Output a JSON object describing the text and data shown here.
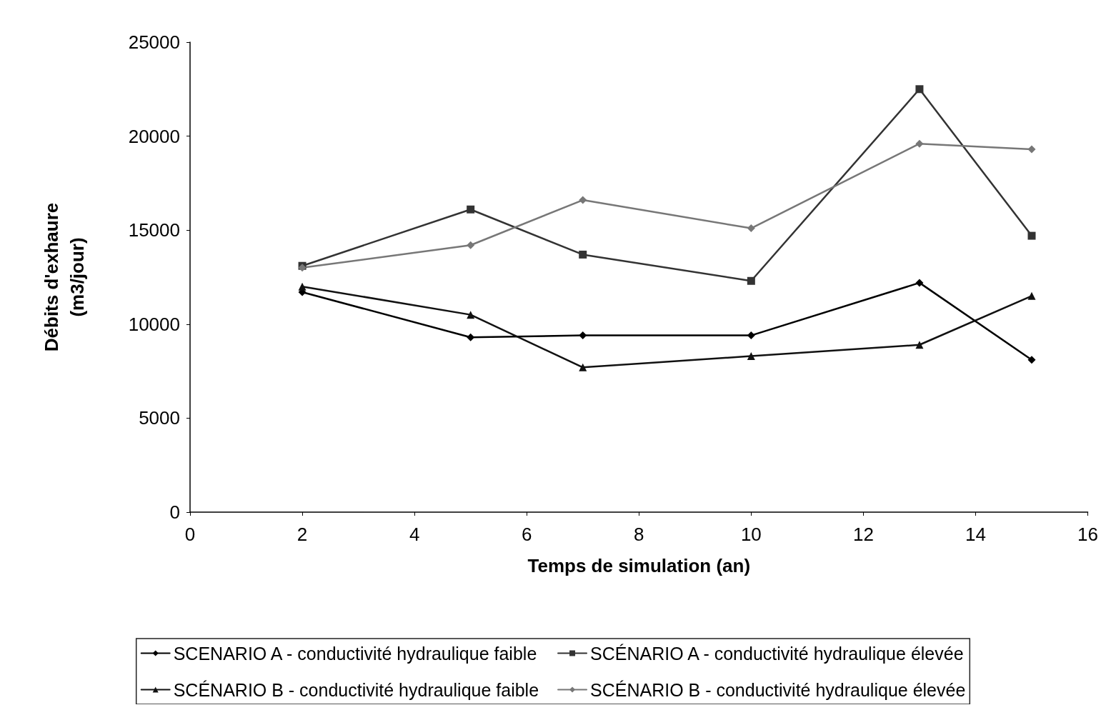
{
  "chart_data": {
    "type": "line",
    "xlabel": "Temps de simulation (an)",
    "ylabel": "Débits d'exhaure\n(m3/jour)",
    "x": [
      2,
      5,
      7,
      10,
      13,
      15
    ],
    "xlim": [
      0,
      16
    ],
    "xticks": [
      0,
      2,
      4,
      6,
      8,
      10,
      12,
      14,
      16
    ],
    "ylim": [
      0,
      25000
    ],
    "yticks": [
      0,
      5000,
      10000,
      15000,
      20000,
      25000
    ],
    "grid": false,
    "legend": "bottom",
    "series": [
      {
        "name": "SCENARIO A - conductivité hydraulique faible",
        "color": "#000000",
        "marker": "diamond",
        "values": [
          11700,
          9300,
          9400,
          9400,
          12200,
          8100
        ]
      },
      {
        "name": "SCÉNARIO A - conductivité hydraulique élevée",
        "color": "#333333",
        "marker": "square",
        "values": [
          13100,
          16100,
          13700,
          12300,
          22500,
          14700
        ]
      },
      {
        "name": "SCÉNARIO B - conductivité hydraulique faible",
        "color": "#111111",
        "marker": "triangle",
        "values": [
          12000,
          10500,
          7700,
          8300,
          8900,
          11500
        ]
      },
      {
        "name": "SCÉNARIO B - conductivité hydraulique élevée",
        "color": "#777777",
        "marker": "diamond",
        "values": [
          13000,
          14200,
          16600,
          15100,
          19600,
          19300
        ]
      }
    ]
  }
}
